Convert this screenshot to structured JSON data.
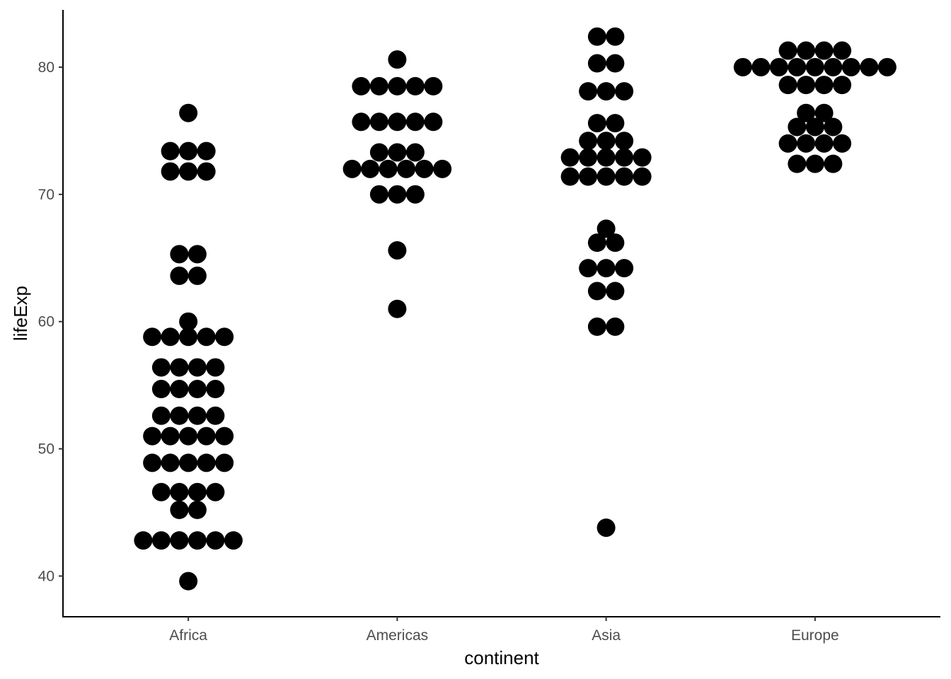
{
  "chart_data": {
    "type": "dotplot",
    "xlabel": "continent",
    "ylabel": "lifeExp",
    "categories": [
      "Africa",
      "Americas",
      "Asia",
      "Europe"
    ],
    "ylim": [
      36.8,
      84.5
    ],
    "yticks": [
      40,
      50,
      60,
      70,
      80
    ],
    "grid": false,
    "legend": "none",
    "dot_color": "#000000",
    "stacks": [
      [
        {
          "y": 39.6,
          "n": 1
        },
        {
          "y": 42.8,
          "n": 6
        },
        {
          "y": 45.2,
          "n": 2
        },
        {
          "y": 46.6,
          "n": 4
        },
        {
          "y": 48.9,
          "n": 5
        },
        {
          "y": 51.0,
          "n": 5
        },
        {
          "y": 52.6,
          "n": 4
        },
        {
          "y": 54.7,
          "n": 4
        },
        {
          "y": 56.4,
          "n": 4
        },
        {
          "y": 58.8,
          "n": 5
        },
        {
          "y": 60.0,
          "n": 1
        },
        {
          "y": 63.6,
          "n": 2
        },
        {
          "y": 65.3,
          "n": 2
        },
        {
          "y": 71.8,
          "n": 3
        },
        {
          "y": 73.4,
          "n": 3
        },
        {
          "y": 76.4,
          "n": 1
        }
      ],
      [
        {
          "y": 61.0,
          "n": 1
        },
        {
          "y": 65.6,
          "n": 1
        },
        {
          "y": 70.0,
          "n": 3
        },
        {
          "y": 72.0,
          "n": 6
        },
        {
          "y": 73.3,
          "n": 3
        },
        {
          "y": 75.7,
          "n": 5
        },
        {
          "y": 78.5,
          "n": 5
        },
        {
          "y": 80.6,
          "n": 1
        }
      ],
      [
        {
          "y": 43.8,
          "n": 1
        },
        {
          "y": 59.6,
          "n": 2
        },
        {
          "y": 62.4,
          "n": 2
        },
        {
          "y": 64.2,
          "n": 3
        },
        {
          "y": 66.2,
          "n": 2
        },
        {
          "y": 67.3,
          "n": 1
        },
        {
          "y": 71.4,
          "n": 5
        },
        {
          "y": 72.9,
          "n": 5
        },
        {
          "y": 74.2,
          "n": 3
        },
        {
          "y": 75.6,
          "n": 2
        },
        {
          "y": 78.1,
          "n": 3
        },
        {
          "y": 80.3,
          "n": 2
        },
        {
          "y": 82.4,
          "n": 2
        }
      ],
      [
        {
          "y": 72.4,
          "n": 3
        },
        {
          "y": 74.0,
          "n": 4
        },
        {
          "y": 75.3,
          "n": 3
        },
        {
          "y": 76.4,
          "n": 2
        },
        {
          "y": 78.6,
          "n": 4
        },
        {
          "y": 80.0,
          "n": 9
        },
        {
          "y": 81.3,
          "n": 4
        }
      ]
    ]
  }
}
